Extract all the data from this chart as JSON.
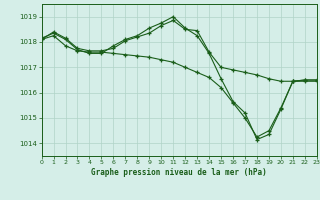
{
  "bg_color": "#d5eee8",
  "grid_color": "#b0d4c8",
  "line_color": "#1a5e1a",
  "marker": "+",
  "title": "Graphe pression niveau de la mer (hPa)",
  "xlim": [
    0,
    23
  ],
  "ylim": [
    1013.5,
    1019.5
  ],
  "yticks": [
    1014,
    1015,
    1016,
    1017,
    1018,
    1019
  ],
  "xticks": [
    0,
    1,
    2,
    3,
    4,
    5,
    6,
    7,
    8,
    9,
    10,
    11,
    12,
    13,
    14,
    15,
    16,
    17,
    18,
    19,
    20,
    21,
    22,
    23
  ],
  "series": [
    {
      "x": [
        0,
        1,
        2,
        3,
        4,
        5,
        6,
        7,
        8,
        9,
        10,
        11,
        12,
        13,
        14,
        15,
        16,
        17,
        18,
        19,
        20,
        21,
        22,
        23
      ],
      "y": [
        1018.1,
        1018.4,
        1018.15,
        1017.75,
        1017.65,
        1017.65,
        1017.75,
        1018.05,
        1018.2,
        1018.35,
        1018.65,
        1018.85,
        1018.5,
        1018.45,
        1017.6,
        1017.0,
        1016.9,
        1016.8,
        1016.7,
        1016.55,
        1016.45,
        1016.45,
        1016.45,
        1016.45
      ]
    },
    {
      "x": [
        0,
        1,
        2,
        3,
        4,
        5,
        6,
        7,
        8,
        9,
        10,
        11,
        12,
        13,
        14,
        15,
        16,
        17,
        18,
        19,
        20,
        21,
        22,
        23
      ],
      "y": [
        1018.15,
        1018.35,
        1018.1,
        1017.7,
        1017.55,
        1017.55,
        1017.85,
        1018.1,
        1018.25,
        1018.55,
        1018.75,
        1019.0,
        1018.55,
        1018.25,
        1017.55,
        1016.55,
        1015.65,
        1015.2,
        1014.15,
        1014.35,
        1015.35,
        1016.45,
        1016.5,
        1016.5
      ]
    },
    {
      "x": [
        0,
        1,
        2,
        3,
        4,
        5,
        6,
        7,
        8,
        9,
        10,
        11,
        12,
        13,
        14,
        15,
        16,
        17,
        18,
        19,
        20,
        21,
        22,
        23
      ],
      "y": [
        1018.1,
        1018.25,
        1017.85,
        1017.65,
        1017.6,
        1017.6,
        1017.55,
        1017.5,
        1017.45,
        1017.4,
        1017.3,
        1017.2,
        1017.0,
        1016.8,
        1016.6,
        1016.2,
        1015.6,
        1015.0,
        1014.25,
        1014.5,
        1015.4,
        1016.45,
        1016.5,
        1016.5
      ]
    }
  ]
}
